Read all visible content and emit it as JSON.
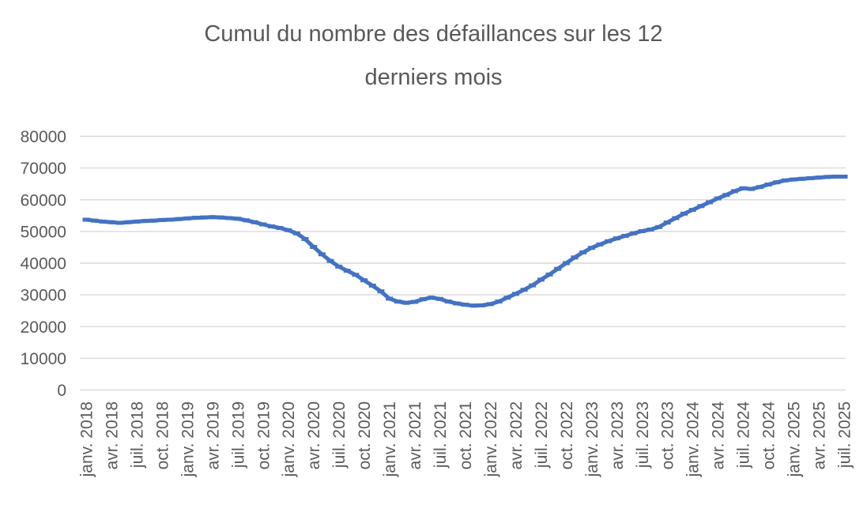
{
  "title": {
    "line1": "Cumul du nombre des défaillances sur les 12",
    "line2": "derniers mois",
    "color": "#595959"
  },
  "chart_data": {
    "type": "line",
    "title": "Cumul du nombre des défaillances sur les 12 derniers mois",
    "xlabel": "",
    "ylabel": "",
    "legend_position": "none",
    "grid": "horizontal-only",
    "ylim": [
      0,
      80000
    ],
    "y_ticks": [
      0,
      10000,
      20000,
      30000,
      40000,
      50000,
      60000,
      70000,
      80000
    ],
    "x_tick_every": 3,
    "x_tick_labels": [
      "janv. 2018",
      "avr. 2018",
      "juil. 2018",
      "oct. 2018",
      "janv. 2019",
      "avr. 2019",
      "juil. 2019",
      "oct. 2019",
      "janv. 2020",
      "avr. 2020",
      "juil. 2020",
      "oct. 2020",
      "janv. 2021",
      "avr. 2021",
      "juil. 2021",
      "oct. 2021",
      "janv. 2022",
      "avr. 2022",
      "juil. 2022",
      "oct. 2022",
      "janv. 2023",
      "avr. 2023",
      "juil. 2023",
      "oct. 2023",
      "janv. 2024",
      "avr. 2024",
      "juil. 2024",
      "oct. 2024",
      "janv. 2025",
      "avr. 2025",
      "juil. 2025"
    ],
    "n_points": 91,
    "values": [
      53700,
      53400,
      53100,
      52900,
      52700,
      52900,
      53100,
      53300,
      53400,
      53600,
      53700,
      53900,
      54100,
      54300,
      54400,
      54500,
      54400,
      54200,
      54000,
      53500,
      52900,
      52200,
      51600,
      51100,
      50400,
      49400,
      47600,
      45100,
      42800,
      40700,
      38900,
      37600,
      36300,
      34600,
      32900,
      31100,
      28800,
      27900,
      27500,
      27800,
      28600,
      29100,
      28700,
      27900,
      27300,
      26900,
      26600,
      26700,
      27100,
      27900,
      29100,
      30300,
      31600,
      33000,
      34800,
      36400,
      38200,
      40000,
      41800,
      43400,
      44800,
      45900,
      46900,
      47800,
      48600,
      49400,
      50100,
      50600,
      51400,
      52800,
      54200,
      55600,
      56800,
      58000,
      59200,
      60400,
      61500,
      62700,
      63600,
      63400,
      64000,
      64800,
      65500,
      66100,
      66400,
      66600,
      66800,
      67000,
      67200,
      67300,
      67300
    ],
    "series_color": "#4472C4",
    "gridline_color": "#D9D9D9",
    "axis_label_color": "#595959"
  }
}
